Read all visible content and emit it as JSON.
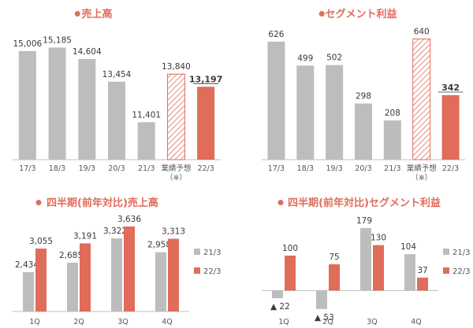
{
  "colors": {
    "gray": "#BDBDBD",
    "accent": "#E06C5A",
    "title": "#E06C5A",
    "axis": "#BFBFBF",
    "forecast_hatch": "#E06C5A"
  },
  "chart_data": [
    {
      "type": "bar",
      "title": "売上高",
      "categories": [
        "17/3",
        "18/3",
        "19/3",
        "20/3",
        "21/3",
        "業績予想\n（※）",
        "22/3"
      ],
      "values": [
        15006,
        15185,
        14604,
        13454,
        11401,
        13840,
        13197
      ],
      "labels": [
        "15,006",
        "15,185",
        "14,604",
        "13,454",
        "11,401",
        "13,840",
        "13,197"
      ],
      "bar_styles": [
        "gray",
        "gray",
        "gray",
        "gray",
        "gray",
        "hatch",
        "accent"
      ],
      "ylim": [
        9500,
        16000
      ],
      "grid": false
    },
    {
      "type": "bar",
      "title": "セグメント利益",
      "categories": [
        "17/3",
        "18/3",
        "19/3",
        "20/3",
        "21/3",
        "業績予想\n（※）",
        "22/3"
      ],
      "values": [
        626,
        499,
        502,
        298,
        208,
        640,
        342
      ],
      "labels": [
        "626",
        "499",
        "502",
        "298",
        "208",
        "640",
        "342"
      ],
      "bar_styles": [
        "gray",
        "gray",
        "gray",
        "gray",
        "gray",
        "hatch",
        "accent"
      ],
      "ylim": [
        0,
        680
      ],
      "grid": false
    },
    {
      "type": "bar",
      "title": "四半期(前年対比)売上高",
      "categories": [
        "1Q",
        "2Q",
        "3Q",
        "4Q"
      ],
      "series": [
        {
          "name": "21/3",
          "values": [
            2434,
            2685,
            3322,
            2958
          ],
          "labels": [
            "2,434",
            "2,685",
            "3,322",
            "2,958"
          ]
        },
        {
          "name": "22/3",
          "values": [
            3055,
            3191,
            3636,
            3313
          ],
          "labels": [
            "3,055",
            "3,191",
            "3,636",
            "3,313"
          ]
        }
      ],
      "ylim": [
        1400,
        3800
      ],
      "legend": "right",
      "grid": false
    },
    {
      "type": "bar",
      "title": "四半期(前年対比)セグメント利益",
      "categories": [
        "1Q",
        "2Q",
        "3Q",
        "4Q"
      ],
      "series": [
        {
          "name": "21/3",
          "values": [
            -22,
            -53,
            179,
            104
          ],
          "labels": [
            "▲ 22",
            "▲ 53",
            "179",
            "104"
          ]
        },
        {
          "name": "22/3",
          "values": [
            100,
            75,
            130,
            37
          ],
          "labels": [
            "100",
            "75",
            "130",
            "37"
          ]
        }
      ],
      "ylim": [
        -60,
        190
      ],
      "legend": "right",
      "grid": false
    }
  ]
}
